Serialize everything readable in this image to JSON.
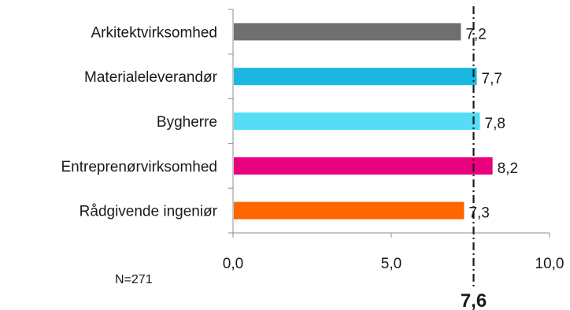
{
  "chart_data": {
    "type": "bar",
    "orientation": "horizontal",
    "categories": [
      "Arkitektvirksomhed",
      "Materialeleverandør",
      "Bygherre",
      "Entreprenørvirksomhed",
      "Rådgivende ingeniør"
    ],
    "values": [
      7.2,
      7.7,
      7.8,
      8.2,
      7.3
    ],
    "value_labels": [
      "7,2",
      "7,7",
      "7,8",
      "8,2",
      "7,3"
    ],
    "bar_colors": [
      "#6f6f6f",
      "#1ab8e0",
      "#55ddf5",
      "#e8007d",
      "#ff6600"
    ],
    "xlim": [
      0,
      10
    ],
    "x_ticks": [
      0,
      5,
      10
    ],
    "x_tick_labels": [
      "0,0",
      "5,0",
      "10,0"
    ],
    "reference_line": {
      "value": 7.6,
      "label": "7,6",
      "style": "dash-dot"
    },
    "annotation": "N=271",
    "grid": false,
    "legend": "none"
  }
}
